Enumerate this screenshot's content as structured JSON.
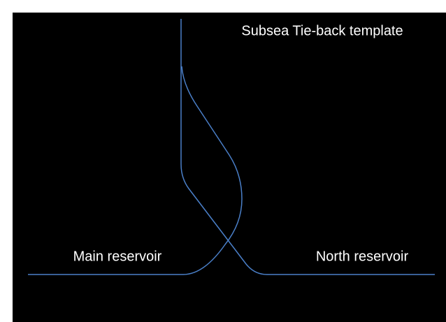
{
  "title": "Subsea Tie-back template",
  "labels": {
    "left": "Main reservoir",
    "right": "North reservoir"
  }
}
